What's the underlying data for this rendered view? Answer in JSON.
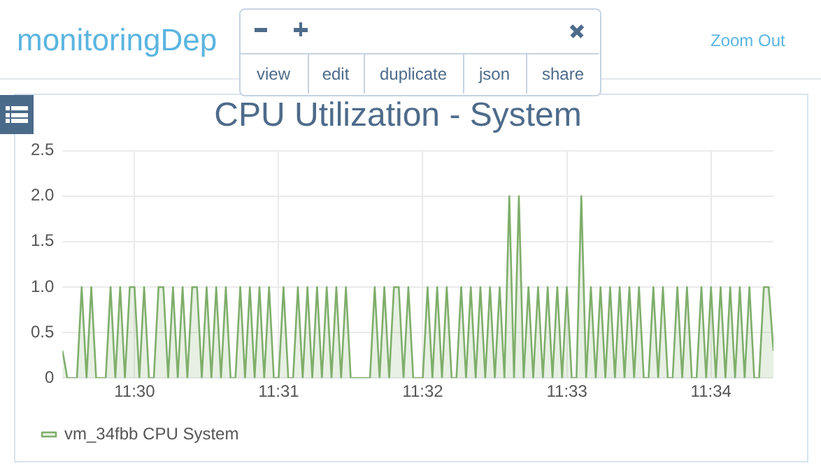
{
  "chart_data": {
    "type": "area",
    "title": "CPU Utilization - System",
    "x": [
      11.49167,
      11.49223,
      11.49278,
      11.49334,
      11.49389,
      11.49445,
      11.495,
      11.49556,
      11.49611,
      11.49667,
      11.49723,
      11.49778,
      11.49834,
      11.49889,
      11.49945,
      11.5,
      11.50056,
      11.50111,
      11.50167,
      11.50223,
      11.50278,
      11.50334,
      11.50389,
      11.50445,
      11.505,
      11.50556,
      11.50611,
      11.50667,
      11.50723,
      11.50778,
      11.50834,
      11.50889,
      11.50945,
      11.51,
      11.51056,
      11.51111,
      11.51167,
      11.51223,
      11.51278,
      11.51334,
      11.51389,
      11.51445,
      11.515,
      11.51556,
      11.51611,
      11.51667,
      11.51723,
      11.51778,
      11.51834,
      11.51889,
      11.51945,
      11.52,
      11.52056,
      11.52111,
      11.52167,
      11.52223,
      11.52278,
      11.52334,
      11.52389,
      11.52445,
      11.525,
      11.52556,
      11.52611,
      11.52667,
      11.52723,
      11.52778,
      11.52834,
      11.52889,
      11.52945,
      11.53,
      11.53056,
      11.53111,
      11.53167,
      11.53223,
      11.53278,
      11.53334,
      11.53389,
      11.53445,
      11.535,
      11.53556,
      11.53611,
      11.53667,
      11.53723,
      11.53778,
      11.53834,
      11.53889,
      11.53945,
      11.54,
      11.54056,
      11.54111,
      11.54167,
      11.54223,
      11.54278,
      11.54334,
      11.54389,
      11.54445,
      11.545,
      11.54556,
      11.54611,
      11.54667,
      11.54723,
      11.54778,
      11.54834,
      11.54889,
      11.54945,
      11.55,
      11.55056,
      11.55111,
      11.55167,
      11.55223,
      11.55278,
      11.55334,
      11.55389,
      11.55445,
      11.555,
      11.55556,
      11.55611,
      11.55667,
      11.55723,
      11.55778,
      11.55834,
      11.55889,
      11.55945,
      11.56,
      11.56056,
      11.56111,
      11.56167,
      11.56223,
      11.56278,
      11.56334,
      11.56389,
      11.56445,
      11.565,
      11.56556,
      11.56611,
      11.56667,
      11.56723,
      11.56778,
      11.56834,
      11.56889,
      11.56945,
      11.57,
      11.57056,
      11.57111,
      11.57167,
      11.57223,
      11.57278,
      11.57334,
      11.57389
    ],
    "series": [
      {
        "name": "vm_34fbb CPU System",
        "color": "#7fae6b",
        "values": [
          0.3,
          0,
          0,
          0,
          1,
          0,
          1,
          0,
          0,
          0,
          1,
          0,
          1,
          0,
          1,
          1,
          0,
          1,
          0,
          0,
          1,
          1,
          0,
          1,
          0,
          1,
          0,
          1,
          1,
          0,
          1,
          0,
          1,
          0,
          1,
          0,
          0,
          1,
          0,
          1,
          0,
          1,
          0,
          1,
          0,
          0,
          1,
          0,
          0,
          1,
          0,
          1,
          0,
          1,
          0,
          1,
          0,
          1,
          0,
          1,
          0,
          0,
          0,
          0,
          0,
          1,
          0,
          1,
          0,
          1,
          1,
          0,
          1,
          0,
          0,
          0,
          1,
          0,
          1,
          0,
          1,
          0,
          0,
          1,
          0,
          1,
          0,
          1,
          0,
          1,
          0,
          1,
          0,
          2,
          0,
          2,
          0,
          1,
          0,
          1,
          0,
          1,
          0,
          1,
          0,
          1,
          0,
          0,
          2,
          0,
          1,
          0,
          1,
          0,
          1,
          0,
          1,
          0,
          1,
          0,
          1,
          0,
          0,
          1,
          0,
          1,
          0,
          0,
          1,
          0,
          1,
          0,
          0,
          1,
          0,
          1,
          0,
          1,
          0,
          1,
          0,
          1,
          0,
          1,
          0,
          0,
          1,
          1,
          0.3
        ]
      }
    ],
    "xlim": [
      11.49167,
      11.57389
    ],
    "xticks": [
      {
        "value": 11.5,
        "label": "11:30"
      },
      {
        "value": 11.51667,
        "label": "11:31"
      },
      {
        "value": 11.53333,
        "label": "11:32"
      },
      {
        "value": 11.55,
        "label": "11:33"
      },
      {
        "value": 11.56667,
        "label": "11:34"
      }
    ],
    "ylim": [
      0,
      2.5
    ],
    "yticks": [
      0,
      {
        "value": 0.5,
        "label": "0.5"
      },
      {
        "value": 1,
        "label": "1.0"
      },
      {
        "value": 1.5,
        "label": "1.5"
      },
      {
        "value": 2,
        "label": "2.0"
      },
      {
        "value": 2.5,
        "label": "2.5"
      }
    ],
    "grid": true,
    "legend": "bottom left",
    "marker": "none",
    "line_style": "solid",
    "annotations": [
      "monitoringDep",
      "Zoom Out",
      "view",
      "edit",
      "duplicate",
      "json",
      "share"
    ]
  }
}
